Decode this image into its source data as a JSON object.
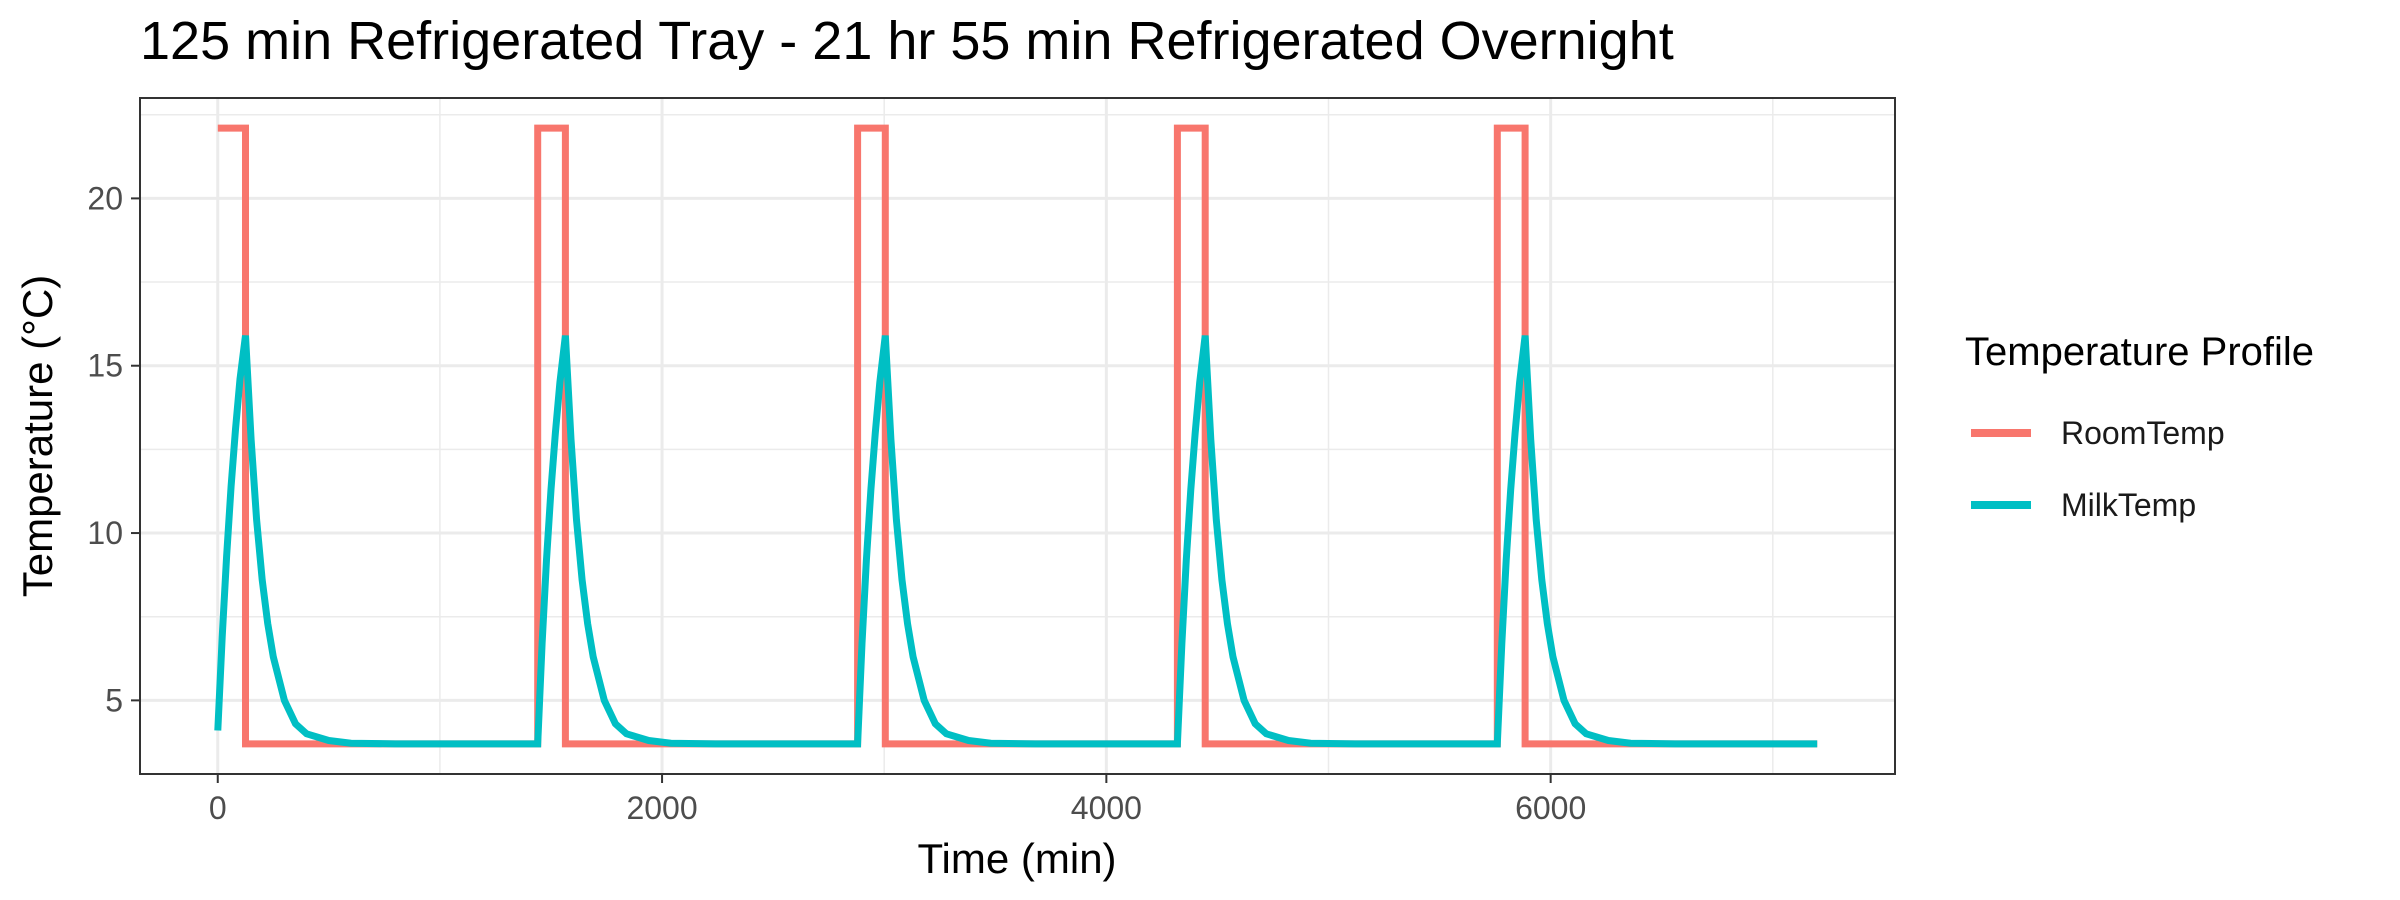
{
  "chart_data": {
    "type": "line",
    "title": "125 min Refrigerated Tray - 21 hr 55 min Refrigerated Overnight",
    "xlabel": "Time (min)",
    "ylabel": "Temperature (°C)",
    "xlim": [
      -350,
      7550
    ],
    "ylim": [
      2.8,
      23.0
    ],
    "x_ticks": [
      0,
      2000,
      4000,
      6000
    ],
    "x_tick_labels": [
      "0",
      "2000",
      "4000",
      "6000"
    ],
    "y_ticks": [
      5,
      10,
      15,
      20
    ],
    "y_tick_labels": [
      "5",
      "10",
      "15",
      "20"
    ],
    "grid": true,
    "legend": {
      "title": "Temperature Profile",
      "placement": "right"
    },
    "series": [
      {
        "name": "RoomTemp",
        "color": "#F8766D",
        "points": [
          [
            0,
            22.1
          ],
          [
            125,
            22.1
          ],
          [
            125,
            3.7
          ],
          [
            1440,
            3.7
          ],
          [
            1440,
            22.1
          ],
          [
            1565,
            22.1
          ],
          [
            1565,
            3.7
          ],
          [
            2880,
            3.7
          ],
          [
            2880,
            22.1
          ],
          [
            3005,
            22.1
          ],
          [
            3005,
            3.7
          ],
          [
            4320,
            3.7
          ],
          [
            4320,
            22.1
          ],
          [
            4445,
            22.1
          ],
          [
            4445,
            3.7
          ],
          [
            5760,
            3.7
          ],
          [
            5760,
            22.1
          ],
          [
            5885,
            22.1
          ],
          [
            5885,
            3.7
          ],
          [
            7200,
            3.7
          ]
        ]
      },
      {
        "name": "MilkTemp",
        "color": "#00BFC4",
        "points": [
          [
            0,
            4.1
          ],
          [
            20,
            6.9
          ],
          [
            40,
            9.3
          ],
          [
            60,
            11.4
          ],
          [
            80,
            13.1
          ],
          [
            100,
            14.6
          ],
          [
            125,
            15.9
          ],
          [
            150,
            12.8
          ],
          [
            175,
            10.4
          ],
          [
            200,
            8.6
          ],
          [
            225,
            7.3
          ],
          [
            250,
            6.3
          ],
          [
            300,
            5.0
          ],
          [
            350,
            4.3
          ],
          [
            400,
            4.0
          ],
          [
            500,
            3.8
          ],
          [
            600,
            3.72
          ],
          [
            800,
            3.7
          ],
          [
            1440,
            3.7
          ],
          [
            1460,
            6.7
          ],
          [
            1480,
            9.2
          ],
          [
            1500,
            11.3
          ],
          [
            1520,
            13.0
          ],
          [
            1540,
            14.5
          ],
          [
            1565,
            15.9
          ],
          [
            1590,
            12.8
          ],
          [
            1615,
            10.4
          ],
          [
            1640,
            8.6
          ],
          [
            1665,
            7.3
          ],
          [
            1690,
            6.3
          ],
          [
            1740,
            5.0
          ],
          [
            1790,
            4.3
          ],
          [
            1840,
            4.0
          ],
          [
            1940,
            3.8
          ],
          [
            2040,
            3.72
          ],
          [
            2240,
            3.7
          ],
          [
            2880,
            3.7
          ],
          [
            2900,
            6.7
          ],
          [
            2920,
            9.2
          ],
          [
            2940,
            11.3
          ],
          [
            2960,
            13.0
          ],
          [
            2980,
            14.5
          ],
          [
            3005,
            15.9
          ],
          [
            3030,
            12.8
          ],
          [
            3055,
            10.4
          ],
          [
            3080,
            8.6
          ],
          [
            3105,
            7.3
          ],
          [
            3130,
            6.3
          ],
          [
            3180,
            5.0
          ],
          [
            3230,
            4.3
          ],
          [
            3280,
            4.0
          ],
          [
            3380,
            3.8
          ],
          [
            3480,
            3.72
          ],
          [
            3680,
            3.7
          ],
          [
            4320,
            3.7
          ],
          [
            4340,
            6.7
          ],
          [
            4360,
            9.2
          ],
          [
            4380,
            11.3
          ],
          [
            4400,
            13.0
          ],
          [
            4420,
            14.5
          ],
          [
            4445,
            15.9
          ],
          [
            4470,
            12.8
          ],
          [
            4495,
            10.4
          ],
          [
            4520,
            8.6
          ],
          [
            4545,
            7.3
          ],
          [
            4570,
            6.3
          ],
          [
            4620,
            5.0
          ],
          [
            4670,
            4.3
          ],
          [
            4720,
            4.0
          ],
          [
            4820,
            3.8
          ],
          [
            4920,
            3.72
          ],
          [
            5120,
            3.7
          ],
          [
            5760,
            3.7
          ],
          [
            5780,
            6.7
          ],
          [
            5800,
            9.2
          ],
          [
            5820,
            11.3
          ],
          [
            5840,
            13.0
          ],
          [
            5860,
            14.5
          ],
          [
            5885,
            15.9
          ],
          [
            5910,
            12.8
          ],
          [
            5935,
            10.4
          ],
          [
            5960,
            8.6
          ],
          [
            5985,
            7.3
          ],
          [
            6010,
            6.3
          ],
          [
            6060,
            5.0
          ],
          [
            6110,
            4.3
          ],
          [
            6160,
            4.0
          ],
          [
            6260,
            3.8
          ],
          [
            6360,
            3.72
          ],
          [
            6560,
            3.7
          ],
          [
            7200,
            3.7
          ]
        ]
      }
    ]
  }
}
